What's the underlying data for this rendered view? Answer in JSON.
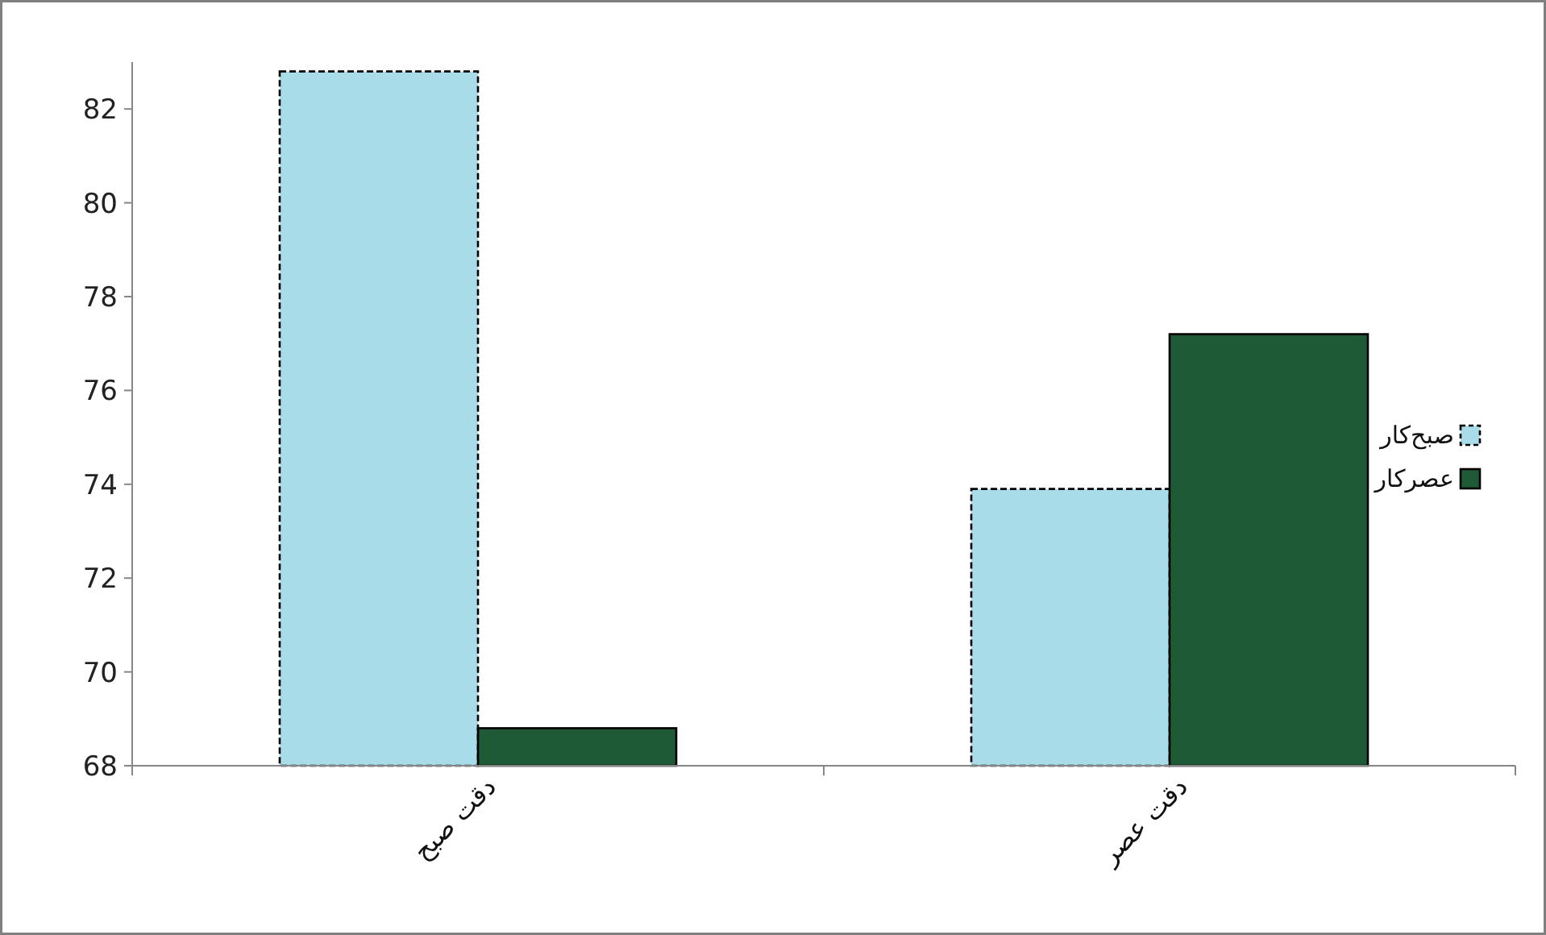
{
  "chart_data": {
    "type": "bar",
    "categories": [
      "دقت صبح",
      "دقت عصر"
    ],
    "series": [
      {
        "name": "صبح‌کار",
        "color": "#a8dce8",
        "values": [
          82.8,
          73.9
        ],
        "line_style": "dashed"
      },
      {
        "name": "عصرکار",
        "color": "#1e5a35",
        "values": [
          68.8,
          77.2
        ]
      }
    ],
    "ylim": [
      68,
      83
    ],
    "yticks": [
      68,
      70,
      72,
      74,
      76,
      78,
      80,
      82
    ],
    "grid": false,
    "legend": "right"
  }
}
